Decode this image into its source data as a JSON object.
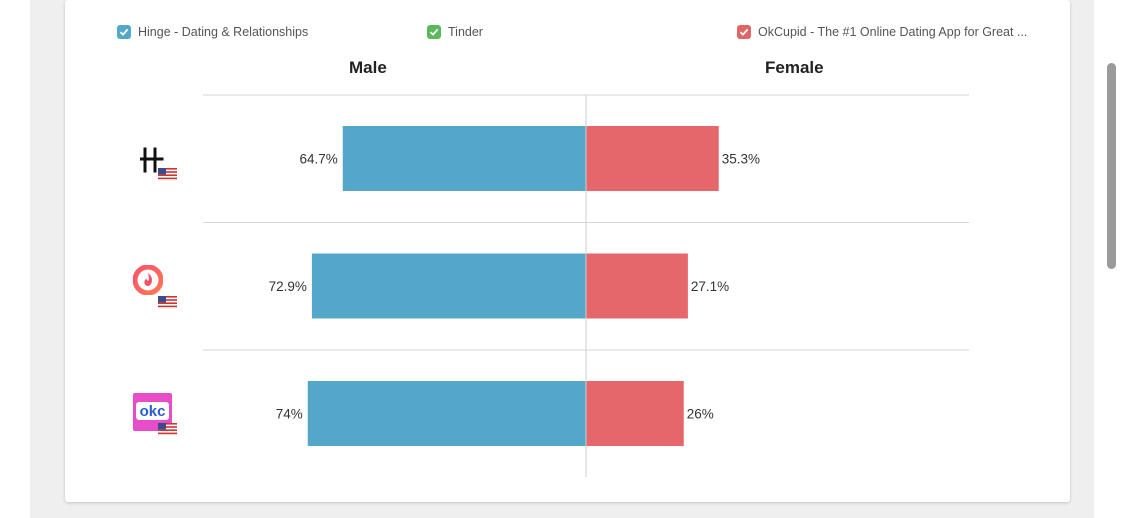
{
  "legend": [
    {
      "label": "Hinge - Dating & Relationships",
      "color": "#55a7c9"
    },
    {
      "label": "Tinder",
      "color": "#5cb85c"
    },
    {
      "label": "OkCupid - The #1 Online Dating App for Great ...",
      "color": "#e06666"
    }
  ],
  "chart_data": {
    "type": "bar",
    "orientation": "horizontal-diverging",
    "columns": [
      "Male",
      "Female"
    ],
    "categories": [
      "Hinge - Dating & Relationships",
      "Tinder",
      "OkCupid - The #1 Online Dating App for Great ..."
    ],
    "series": [
      {
        "name": "Male",
        "values": [
          64.7,
          72.9,
          74
        ],
        "labels": [
          "64.7%",
          "72.9%",
          "74%"
        ],
        "color": "#55a7c9"
      },
      {
        "name": "Female",
        "values": [
          35.3,
          27.1,
          26
        ],
        "labels": [
          "35.3%",
          "27.1%",
          "26%"
        ],
        "color": "#e5676b"
      }
    ],
    "xlim": [
      0,
      100
    ]
  },
  "apps": [
    {
      "icon": "hinge-logo-icon",
      "logo_text": "H",
      "flag": "us-flag-icon"
    },
    {
      "icon": "tinder-logo-icon",
      "flag": "us-flag-icon"
    },
    {
      "icon": "okcupid-logo-icon",
      "logo_text": "okc",
      "flag": "us-flag-icon"
    }
  ]
}
